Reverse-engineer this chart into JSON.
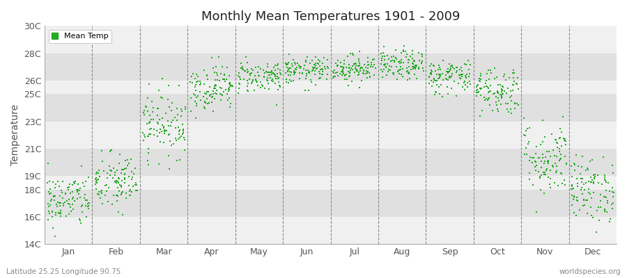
{
  "title": "Monthly Mean Temperatures 1901 - 2009",
  "ylabel": "Temperature",
  "subtitle_left": "Latitude 25.25 Longitude 90.75",
  "subtitle_right": "worldspecies.org",
  "legend_label": "Mean Temp",
  "dot_color": "#22aa22",
  "background_color": "#ffffff",
  "plot_bg_color": "#f0f0f0",
  "stripe_color_dark": "#e0e0e0",
  "stripe_color_light": "#f0f0f0",
  "ylim": [
    14,
    30
  ],
  "ytick_labels": [
    "14C",
    "16C",
    "18C",
    "19C",
    "21C",
    "23C",
    "25C",
    "26C",
    "28C",
    "30C"
  ],
  "ytick_values": [
    14,
    16,
    18,
    19,
    21,
    23,
    25,
    26,
    28,
    30
  ],
  "months": [
    "Jan",
    "Feb",
    "Mar",
    "Apr",
    "May",
    "Jun",
    "Jul",
    "Aug",
    "Sep",
    "Oct",
    "Nov",
    "Dec"
  ],
  "month_means": [
    17.2,
    18.5,
    22.8,
    25.5,
    26.3,
    26.7,
    26.9,
    27.1,
    26.3,
    25.3,
    20.3,
    18.0
  ],
  "month_stds": [
    1.0,
    1.1,
    1.2,
    0.85,
    0.6,
    0.5,
    0.5,
    0.55,
    0.65,
    0.9,
    1.4,
    1.2
  ],
  "n_years": 109,
  "seed": 42,
  "marker_size": 4,
  "dpi": 100,
  "figsize": [
    9.0,
    4.0
  ]
}
